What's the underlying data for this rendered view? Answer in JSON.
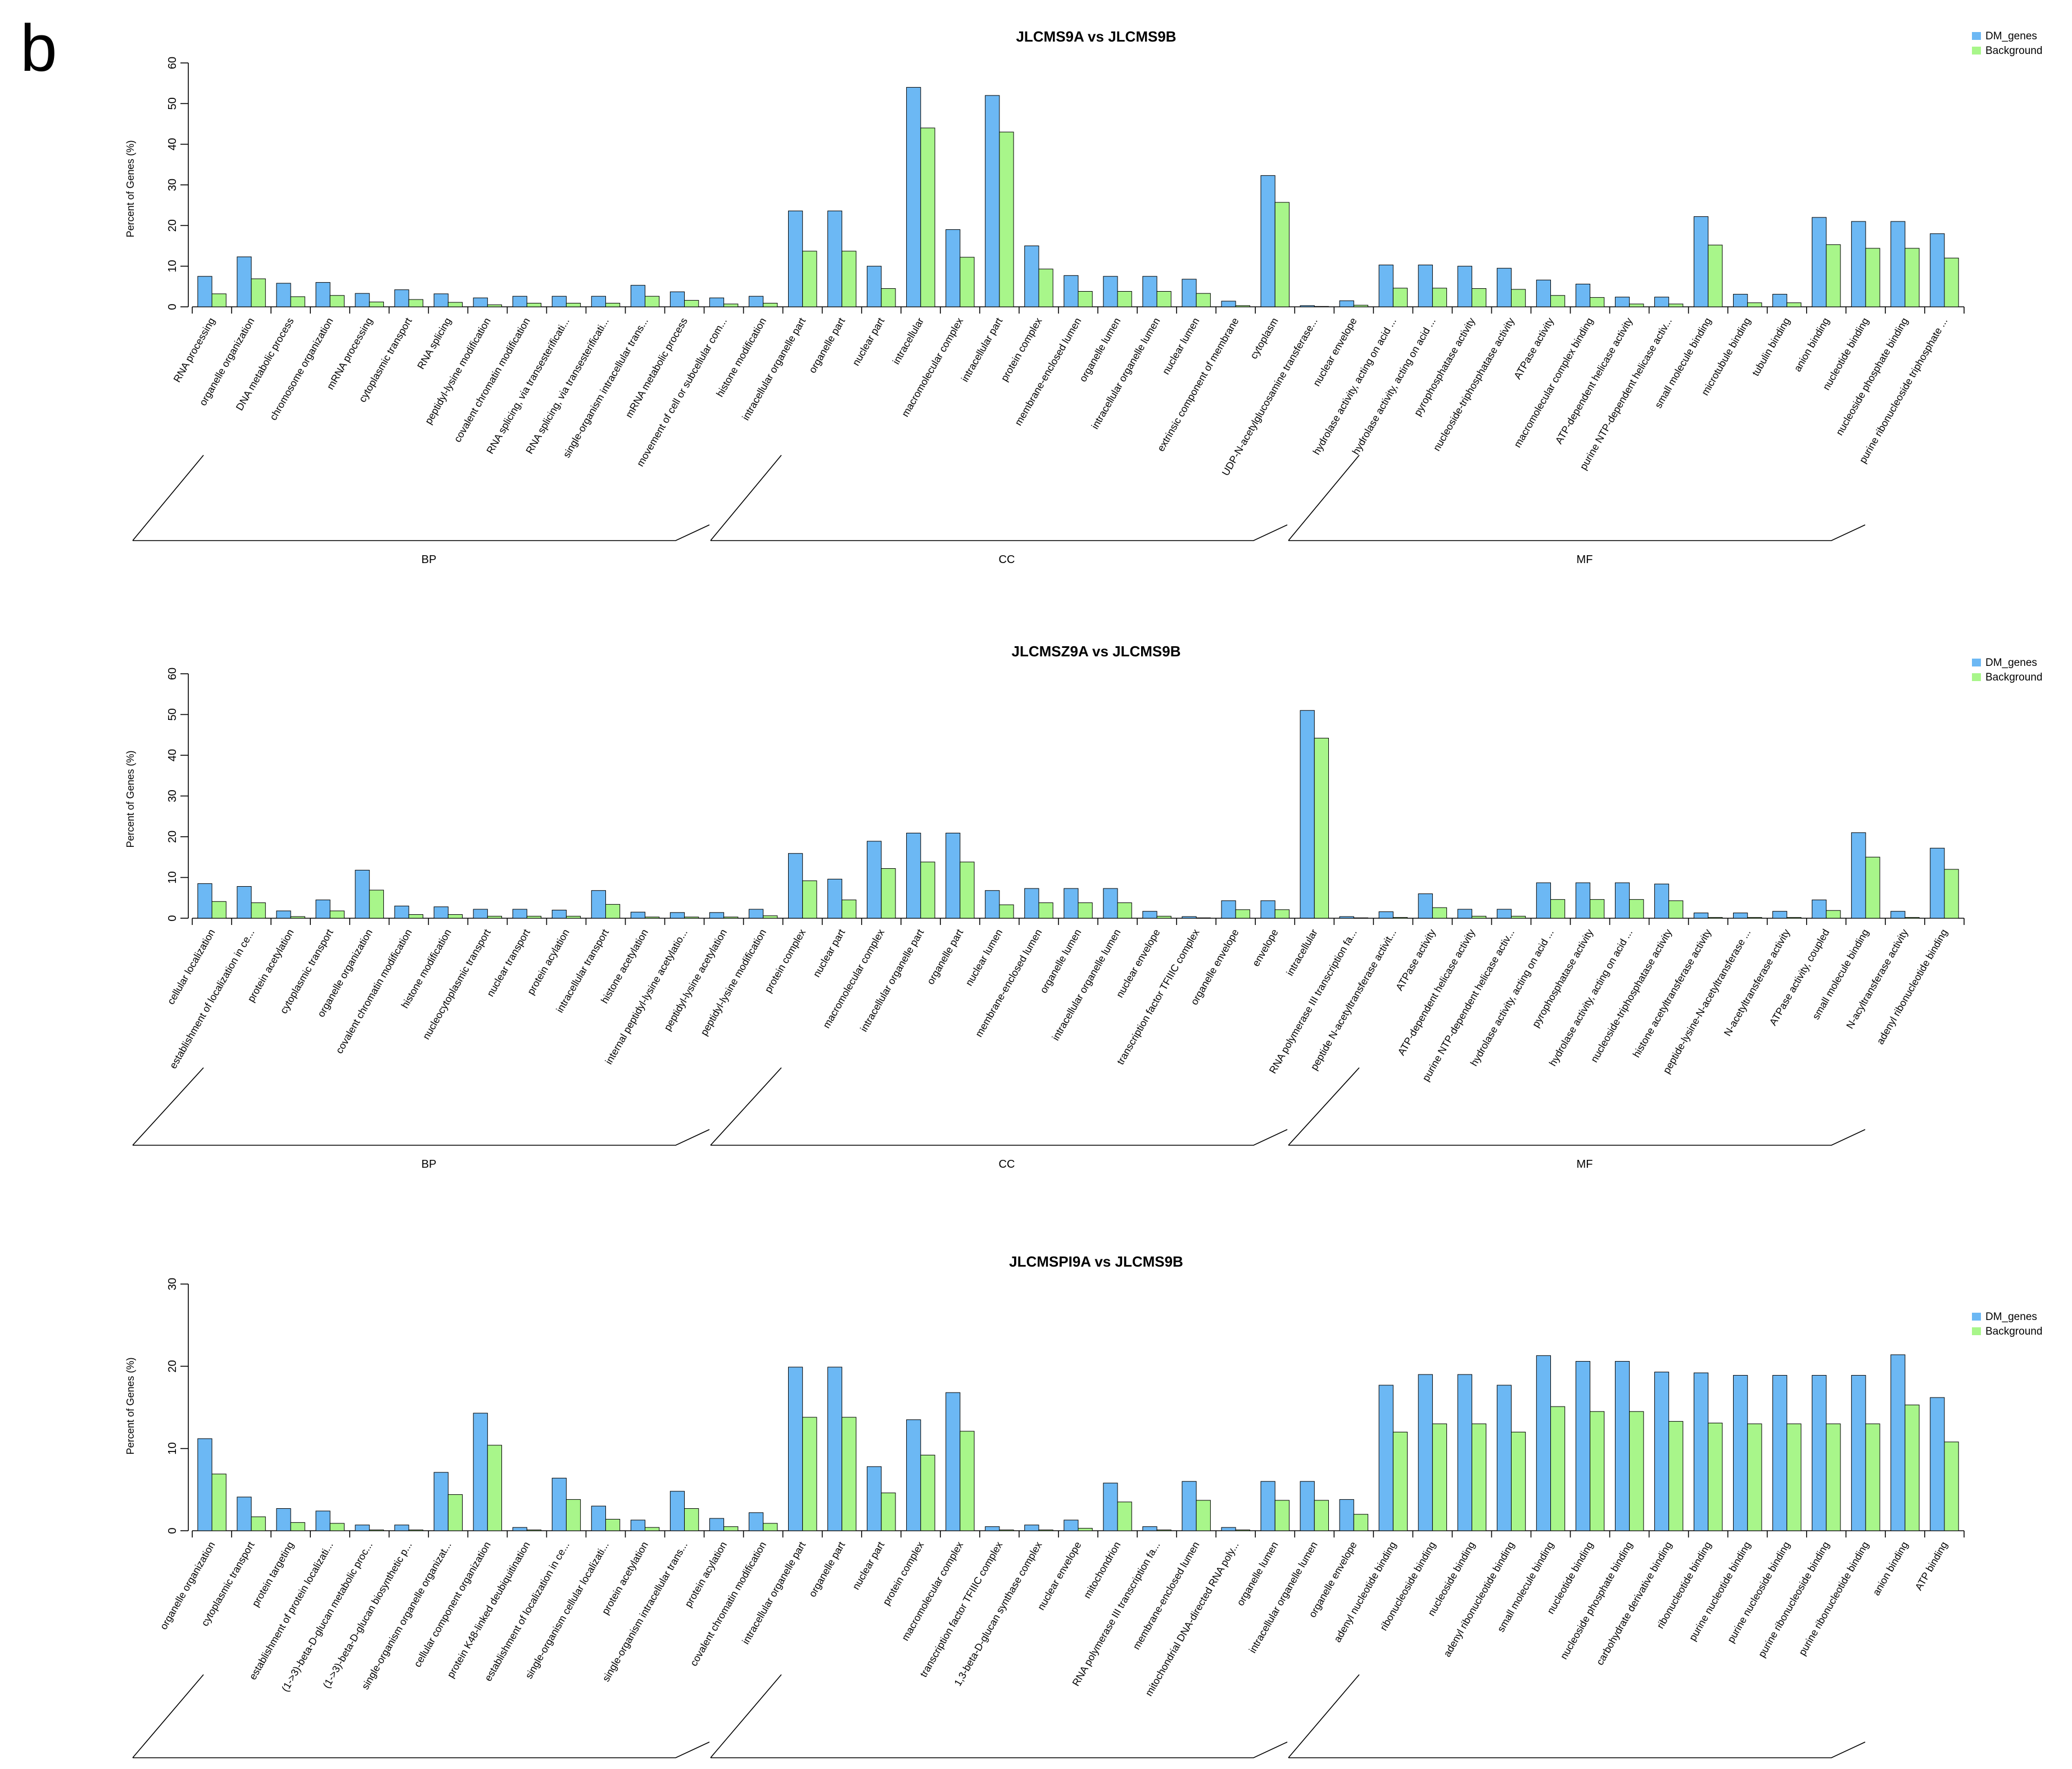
{
  "figure_label": "b",
  "colors": {
    "dm_genes": "#6CB8F4",
    "background": "#A8F68A"
  },
  "chart_data": [
    {
      "type": "bar",
      "title": "JLCMS9A  vs  JLCMS9B",
      "ylabel": "Percent of Genes (%)",
      "ylim": [
        0,
        60
      ],
      "yticks": [
        "0",
        "10",
        "20",
        "30",
        "40",
        "50",
        "60"
      ],
      "legend": [
        "DM_genes",
        "Background"
      ],
      "legend_position": "top-right",
      "categories": [
        "RNA processing",
        "organelle organization",
        "DNA metabolic process",
        "chromosome organization",
        "mRNA processing",
        "cytoplasmic transport",
        "RNA splicing",
        "peptidyl-lysine modification",
        "covalent chromatin modification",
        "RNA splicing, via transesterificati...",
        "RNA splicing, via transesterificati...",
        "single-organism intracellular trans...",
        "mRNA metabolic process",
        "movement of cell or subcellular com...",
        "histone modification",
        "intracellular organelle part",
        "organelle part",
        "nuclear part",
        "intracellular",
        "macromolecular complex",
        "intracellular part",
        "protein complex",
        "membrane-enclosed lumen",
        "organelle lumen",
        "intracellular organelle lumen",
        "nuclear lumen",
        "extrinsic component of membrane",
        "cytoplasm",
        "UDP-N-acetylglucosamine transferase...",
        "nuclear envelope",
        "hydrolase activity, acting on acid ...",
        "hydrolase activity, acting on acid ...",
        "pyrophosphatase activity",
        "nucleoside-triphosphatase activity",
        "ATPase activity",
        "macromolecular complex binding",
        "ATP-dependent helicase activity",
        "purine NTP-dependent helicase activ...",
        "small molecule binding",
        "microtubule binding",
        "tubulin binding",
        "anion binding",
        "nucleotide binding",
        "nucleoside phosphate binding",
        "purine ribonucleoside triphosphate ..."
      ],
      "series": [
        {
          "name": "DM_genes",
          "values": [
            7.5,
            12.3,
            5.8,
            6,
            3.3,
            4.2,
            3.2,
            2.2,
            2.6,
            2.6,
            2.6,
            5.3,
            3.7,
            2.2,
            2.6,
            23.6,
            23.6,
            10,
            54,
            19,
            52,
            15,
            7.7,
            7.5,
            7.5,
            6.8,
            1.4,
            32.3,
            0.3,
            1.5,
            10.3,
            10.3,
            10,
            9.5,
            6.6,
            5.6,
            2.4,
            2.4,
            22.2,
            3.1,
            3.1,
            22,
            21,
            21,
            18
          ]
        },
        {
          "name": "Background",
          "values": [
            3.2,
            6.9,
            2.5,
            2.8,
            1.2,
            1.8,
            1.1,
            0.5,
            0.9,
            0.9,
            0.9,
            2.6,
            1.6,
            0.7,
            0.9,
            13.7,
            13.7,
            4.5,
            44,
            12.2,
            43,
            9.3,
            3.8,
            3.8,
            3.8,
            3.3,
            0.3,
            25.7,
            0.1,
            0.4,
            4.6,
            4.6,
            4.5,
            4.3,
            2.8,
            2.3,
            0.7,
            0.7,
            15.2,
            1.0,
            1.0,
            15.3,
            14.4,
            14.4,
            12
          ]
        }
      ],
      "groups": [
        {
          "label": "BP",
          "from": 0,
          "to": 14
        },
        {
          "label": "CC",
          "from": 15,
          "to": 27
        },
        {
          "label": "MF",
          "from": 28,
          "to": 44
        }
      ]
    },
    {
      "type": "bar",
      "title": "JLCMSZ9A  vs  JLCMS9B",
      "ylabel": "Percent of Genes (%)",
      "ylim": [
        0,
        60
      ],
      "yticks": [
        "0",
        "10",
        "20",
        "30",
        "40",
        "50",
        "60"
      ],
      "legend": [
        "DM_genes",
        "Background"
      ],
      "legend_position": "top-right",
      "categories": [
        "cellular localization",
        "establishment of localization in ce...",
        "protein acetylation",
        "cytoplasmic transport",
        "organelle organization",
        "covalent chromatin modification",
        "histone modification",
        "nucleocytoplasmic transport",
        "nuclear transport",
        "protein acylation",
        "intracellular transport",
        "histone acetylation",
        "internal peptidyl-lysine acetylatio...",
        "peptidyl-lysine acetylation",
        "peptidyl-lysine modification",
        "protein complex",
        "nuclear part",
        "macromolecular complex",
        "intracellular organelle part",
        "organelle part",
        "nuclear lumen",
        "membrane-enclosed lumen",
        "organelle lumen",
        "intracellular organelle lumen",
        "nuclear envelope",
        "transcription factor TFIIIC complex",
        "organelle envelope",
        "envelope",
        "intracellular",
        "RNA polymerase III transcription fa...",
        "peptide N-acetyltransferase activit...",
        "ATPase activity",
        "ATP-dependent helicase activity",
        "purine NTP-dependent helicase activ...",
        "hydrolase activity, acting on acid ...",
        "pyrophosphatase activity",
        "hydrolase activity, acting on acid ...",
        "nucleoside-triphosphatase activity",
        "histone acetyltransferase activity",
        "peptide-lysine-N-acetyltransferase ...",
        "N-acetyltransferase activity",
        "ATPase activity, coupled",
        "small molecule binding",
        "N-acyltransferase activity",
        "adenyl ribonucleotide binding"
      ],
      "series": [
        {
          "name": "DM_genes",
          "values": [
            8.5,
            7.8,
            1.8,
            4.5,
            11.8,
            3,
            2.8,
            2.2,
            2.2,
            2,
            6.8,
            1.5,
            1.4,
            1.4,
            2.2,
            15.9,
            9.6,
            18.9,
            20.9,
            20.9,
            6.8,
            7.3,
            7.3,
            7.3,
            1.7,
            0.4,
            4.3,
            4.3,
            51,
            0.4,
            1.6,
            6,
            2.2,
            2.2,
            8.7,
            8.7,
            8.7,
            8.4,
            1.3,
            1.3,
            1.7,
            4.5,
            21,
            1.7,
            17.2
          ]
        },
        {
          "name": "Background",
          "values": [
            4.1,
            3.8,
            0.4,
            1.8,
            6.9,
            0.9,
            0.9,
            0.5,
            0.5,
            0.5,
            3.4,
            0.3,
            0.3,
            0.3,
            0.6,
            9.2,
            4.5,
            12.2,
            13.8,
            13.8,
            3.3,
            3.8,
            3.8,
            3.8,
            0.5,
            0.1,
            2.1,
            2.1,
            44.2,
            0.1,
            0.2,
            2.6,
            0.5,
            0.5,
            4.6,
            4.6,
            4.6,
            4.3,
            0.2,
            0.2,
            0.2,
            1.9,
            15,
            0.2,
            12
          ]
        }
      ],
      "groups": [
        {
          "label": "BP",
          "from": 0,
          "to": 14
        },
        {
          "label": "CC",
          "from": 15,
          "to": 28
        },
        {
          "label": "MF",
          "from": 29,
          "to": 44
        }
      ]
    },
    {
      "type": "bar",
      "title": "JLCMSPI9A  vs  JLCMS9B",
      "ylabel": "Percent of Genes (%)",
      "ylim": [
        0,
        30
      ],
      "yticks": [
        "0",
        "10",
        "20",
        "30"
      ],
      "legend": [
        "DM_genes",
        "Background"
      ],
      "legend_position": "right",
      "categories": [
        "organelle organization",
        "cytoplasmic transport",
        "protein targeting",
        "establishment of protein localizati...",
        "(1->3)-beta-D-glucan metabolic proc...",
        "(1->3)-beta-D-glucan biosynthetic p...",
        "single-organism organelle organizat...",
        "cellular component organization",
        "protein K48-linked deubiquitination",
        "establishment of localization in ce...",
        "single-organism cellular localizati...",
        "protein acetylation",
        "single-organism intracellular trans...",
        "protein acylation",
        "covalent chromatin modification",
        "intracellular organelle part",
        "organelle part",
        "nuclear part",
        "protein complex",
        "macromolecular complex",
        "transcription factor TFIIIC complex",
        "1,3-beta-D-glucan synthase complex",
        "nuclear envelope",
        "mitochondrion",
        "RNA polymerase III transcription fa...",
        "membrane-enclosed lumen",
        "mitochondrial DNA-directed RNA poly...",
        "organelle lumen",
        "intracellular organelle lumen",
        "organelle envelope",
        "adenyl nucleotide binding",
        "ribonucleoside binding",
        "nucleoside binding",
        "adenyl ribonucleotide binding",
        "small molecule binding",
        "nucleotide binding",
        "nucleoside phosphate binding",
        "carbohydrate derivative binding",
        "ribonucleotide binding",
        "purine nucleotide binding",
        "purine nucleoside binding",
        "purine ribonucleoside binding",
        "purine ribonucleotide binding",
        "anion binding",
        "ATP binding"
      ],
      "series": [
        {
          "name": "DM_genes",
          "values": [
            11.2,
            4.1,
            2.7,
            2.4,
            0.7,
            0.7,
            7.1,
            14.3,
            0.4,
            6.4,
            3,
            1.3,
            4.8,
            1.5,
            2.2,
            19.9,
            19.9,
            7.8,
            13.5,
            16.8,
            0.5,
            0.7,
            1.3,
            5.8,
            0.5,
            6,
            0.4,
            6,
            6,
            3.8,
            17.7,
            19,
            19,
            17.7,
            21.3,
            20.6,
            20.6,
            19.3,
            19.2,
            18.9,
            18.9,
            18.9,
            18.9,
            21.4,
            16.2
          ]
        },
        {
          "name": "Background",
          "values": [
            6.9,
            1.7,
            1,
            0.9,
            0.1,
            0.1,
            4.4,
            10.4,
            0.1,
            3.8,
            1.4,
            0.4,
            2.7,
            0.5,
            0.9,
            13.8,
            13.8,
            4.6,
            9.2,
            12.1,
            0.1,
            0.1,
            0.3,
            3.5,
            0.1,
            3.7,
            0.1,
            3.7,
            3.7,
            2,
            12,
            13,
            13,
            12,
            15.1,
            14.5,
            14.5,
            13.3,
            13.1,
            13,
            13,
            13,
            13,
            15.3,
            10.8
          ]
        }
      ],
      "groups": [
        {
          "label": "",
          "from": 0,
          "to": 14
        },
        {
          "label": "",
          "from": 15,
          "to": 29
        },
        {
          "label": "",
          "from": 30,
          "to": 44
        }
      ]
    }
  ]
}
